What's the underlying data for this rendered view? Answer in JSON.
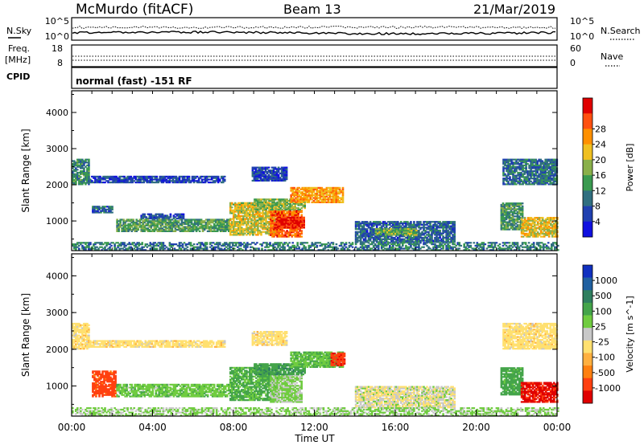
{
  "header": {
    "title": "McMurdo (fitACF)",
    "beam": "Beam 13",
    "date": "21/Mar/2019"
  },
  "noise_panel": {
    "left_label": "N.Sky",
    "right_label": "N.Search",
    "left_ticks": [
      "10^5",
      "10^0"
    ],
    "right_ticks": [
      "10^5",
      "10^0"
    ]
  },
  "freq_panel": {
    "left_label_1": "Freq.",
    "left_label_2": "[MHz]",
    "right_label": "Nave",
    "left_ticks": [
      "18",
      "8"
    ],
    "right_ticks": [
      "60",
      "0"
    ]
  },
  "cpid": {
    "label": "CPID",
    "text": "normal (fast) -151 RF"
  },
  "x_axis": {
    "label": "Time UT",
    "ticks": [
      "00:00",
      "04:00",
      "08:00",
      "12:00",
      "16:00",
      "20:00",
      "00:00"
    ]
  },
  "chart_data": [
    {
      "type": "heatmap",
      "title": "",
      "xlabel": "Time UT",
      "ylabel": "Slant Range [km]",
      "xlim": [
        0,
        24
      ],
      "ylim": [
        180,
        4600
      ],
      "yticks": [
        "1000",
        "2000",
        "3000",
        "4000"
      ],
      "colorbar": {
        "label": "Power [dB]",
        "ticks": [
          "4",
          "8",
          "12",
          "16",
          "20",
          "24",
          "28"
        ],
        "range": [
          0,
          30
        ],
        "colors": [
          "#1010e0",
          "#2040b0",
          "#306f80",
          "#3a9a50",
          "#8ab04a",
          "#f0c020",
          "#ff9000",
          "#ff5010",
          "#e00000"
        ]
      },
      "regions": [
        {
          "t": [
            0.0,
            0.8
          ],
          "r": [
            2000,
            2700
          ],
          "v": 10
        },
        {
          "t": [
            0.8,
            7.6
          ],
          "r": [
            2050,
            2220
          ],
          "v": 5
        },
        {
          "t": [
            1.0,
            2.0
          ],
          "r": [
            1220,
            1400
          ],
          "v": 7
        },
        {
          "t": [
            3.4,
            5.5
          ],
          "r": [
            1050,
            1200
          ],
          "v": 6
        },
        {
          "t": [
            2.2,
            7.8
          ],
          "r": [
            700,
            1050
          ],
          "v": 12
        },
        {
          "t": [
            7.8,
            10.2
          ],
          "r": [
            600,
            1500
          ],
          "v": 17
        },
        {
          "t": [
            9.8,
            11.4
          ],
          "r": [
            550,
            1300
          ],
          "v": 24
        },
        {
          "t": [
            10.0,
            11.5
          ],
          "r": [
            800,
            1100
          ],
          "v": 28
        },
        {
          "t": [
            9.0,
            11.5
          ],
          "r": [
            1300,
            1600
          ],
          "v": 14
        },
        {
          "t": [
            10.8,
            13.4
          ],
          "r": [
            1500,
            1920
          ],
          "v": 21
        },
        {
          "t": [
            8.9,
            10.6
          ],
          "r": [
            2100,
            2500
          ],
          "v": 5
        },
        {
          "t": [
            14.0,
            18.9
          ],
          "r": [
            400,
            1000
          ],
          "v": 7
        },
        {
          "t": [
            15.0,
            17.0
          ],
          "r": [
            600,
            800
          ],
          "v": 14
        },
        {
          "t": [
            21.2,
            22.3
          ],
          "r": [
            750,
            1500
          ],
          "v": 11
        },
        {
          "t": [
            22.2,
            24.0
          ],
          "r": [
            550,
            1100
          ],
          "v": 18
        },
        {
          "t": [
            21.3,
            24.0
          ],
          "r": [
            2000,
            2700
          ],
          "v": 8
        },
        {
          "t": [
            0.0,
            24.0
          ],
          "r": [
            180,
            420
          ],
          "v": 9
        }
      ]
    },
    {
      "type": "heatmap",
      "title": "",
      "xlabel": "Time UT",
      "ylabel": "Slant Range [km]",
      "xlim": [
        0,
        24
      ],
      "ylim": [
        180,
        4600
      ],
      "yticks": [
        "1000",
        "2000",
        "3000",
        "4000"
      ],
      "colorbar": {
        "label": "Velocity [m s^-1]",
        "ticks": [
          "1000",
          "500",
          "100",
          "25",
          "-25",
          "-100",
          "-500",
          "-1000"
        ],
        "colors": [
          "#1030c0",
          "#2060a0",
          "#2f7f5f",
          "#44a44a",
          "#70cc40",
          "#c8c8c8",
          "#ffe070",
          "#ffb040",
          "#ff8010",
          "#ff4010",
          "#e00000"
        ]
      },
      "regions": [
        {
          "t": [
            0.0,
            0.8
          ],
          "r": [
            2000,
            2700
          ],
          "v": 0
        },
        {
          "t": [
            0.8,
            7.6
          ],
          "r": [
            2050,
            2220
          ],
          "v": 0
        },
        {
          "t": [
            1.0,
            2.2
          ],
          "r": [
            700,
            1400
          ],
          "v": -150
        },
        {
          "t": [
            2.2,
            7.8
          ],
          "r": [
            700,
            1050
          ],
          "v": 80
        },
        {
          "t": [
            7.8,
            10.2
          ],
          "r": [
            600,
            1500
          ],
          "v": 120
        },
        {
          "t": [
            9.8,
            11.4
          ],
          "r": [
            550,
            1300
          ],
          "v": 60
        },
        {
          "t": [
            9.0,
            11.5
          ],
          "r": [
            1300,
            1600
          ],
          "v": 200
        },
        {
          "t": [
            10.8,
            13.4
          ],
          "r": [
            1500,
            1920
          ],
          "v": 90
        },
        {
          "t": [
            12.8,
            13.5
          ],
          "r": [
            1550,
            1900
          ],
          "v": -200
        },
        {
          "t": [
            8.9,
            10.6
          ],
          "r": [
            2100,
            2500
          ],
          "v": 0
        },
        {
          "t": [
            14.0,
            18.9
          ],
          "r": [
            400,
            1000
          ],
          "v": 30
        },
        {
          "t": [
            21.2,
            22.3
          ],
          "r": [
            750,
            1500
          ],
          "v": 150
        },
        {
          "t": [
            22.2,
            24.0
          ],
          "r": [
            550,
            1100
          ],
          "v": -300
        },
        {
          "t": [
            21.3,
            24.0
          ],
          "r": [
            2000,
            2700
          ],
          "v": 0
        },
        {
          "t": [
            0.0,
            24.0
          ],
          "r": [
            180,
            420
          ],
          "v": 60
        }
      ]
    }
  ]
}
